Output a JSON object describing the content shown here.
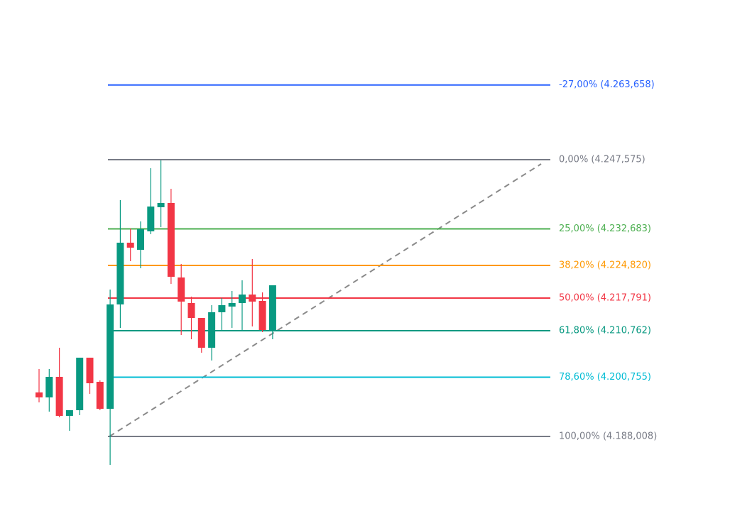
{
  "chart_data": {
    "type": "candlestick",
    "up_color": "#089981",
    "down_color": "#f23645",
    "open": [
      4197.48,
      4196.41,
      4200.84,
      4192.44,
      4193.66,
      4204.96,
      4199.77,
      4193.96,
      4216.42,
      4229.71,
      4228.18,
      4232.15,
      4237.34,
      4238.26,
      4222.22,
      4216.72,
      4213.51,
      4207.1,
      4214.74,
      4215.96,
      4216.72,
      4218.55,
      4217.18,
      4210.92
    ],
    "high": [
      4202.52,
      4202.52,
      4207.1,
      4193.66,
      4204.96,
      4204.96,
      4200.07,
      4219.62,
      4238.87,
      4232.76,
      4234.29,
      4245.74,
      4247.42,
      4241.31,
      4225.12,
      4218.1,
      4213.51,
      4216.26,
      4217.79,
      4219.32,
      4221.61,
      4226.19,
      4219.01,
      4220.54
    ],
    "low": [
      4195.34,
      4193.35,
      4192.13,
      4189.23,
      4192.59,
      4197.17,
      4193.66,
      4181.9,
      4211.38,
      4225.73,
      4224.21,
      4231.54,
      4233.06,
      4220.85,
      4209.85,
      4208.93,
      4206.03,
      4204.35,
      4210.76,
      4211.38,
      4210.76,
      4211.68,
      4210.46,
      4208.93
    ],
    "close": [
      4196.41,
      4200.84,
      4192.44,
      4193.66,
      4204.96,
      4199.46,
      4193.96,
      4216.42,
      4229.71,
      4228.64,
      4232.61,
      4237.49,
      4238.26,
      4222.37,
      4217.03,
      4213.51,
      4207.1,
      4214.74,
      4216.26,
      4216.72,
      4218.55,
      4217.03,
      4210.92,
      4220.54
    ],
    "fib_levels": [
      {
        "label": "-27,00% (4.263,658)",
        "price": 4263.658,
        "color": "#2962ff"
      },
      {
        "label": "0,00% (4.247,575)",
        "price": 4247.575,
        "color": "#787b86"
      },
      {
        "label": "25,00% (4.232,683)",
        "price": 4232.683,
        "color": "#4caf50"
      },
      {
        "label": "38,20% (4.224,820)",
        "price": 4224.82,
        "color": "#ff9800"
      },
      {
        "label": "50,00% (4.217,791)",
        "price": 4217.791,
        "color": "#f23645"
      },
      {
        "label": "61,80% (4.210,762)",
        "price": 4210.762,
        "color": "#089981"
      },
      {
        "label": "78,60% (4.200,755)",
        "price": 4200.755,
        "color": "#00bcd4"
      },
      {
        "label": "100,00% (4.188,008)",
        "price": 4188.008,
        "color": "#787b86"
      }
    ]
  }
}
